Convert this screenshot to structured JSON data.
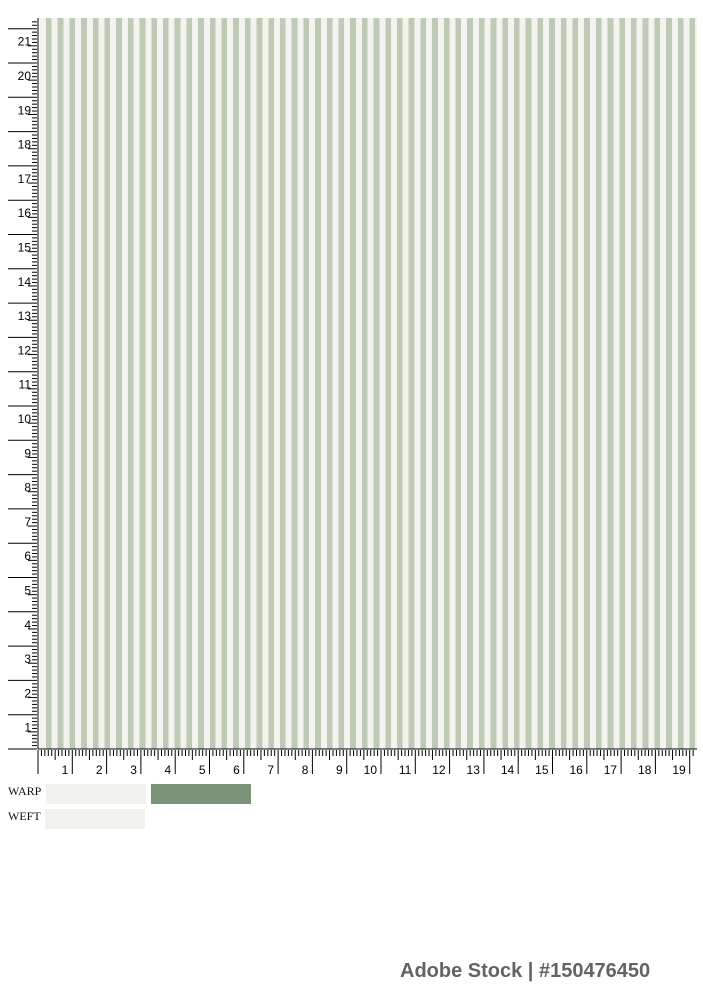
{
  "swatch": {
    "pattern": "vertical-stripes",
    "colors": {
      "ground": "#f3f4ef",
      "stripe": "#bccab6",
      "warp_light": "#f1f2ee",
      "warp_dark": "#7a9277",
      "weft": "#f1f2ee"
    }
  },
  "ruler": {
    "unit": "cm",
    "horizontal_labels": [
      "1",
      "2",
      "3",
      "4",
      "5",
      "6",
      "7",
      "8",
      "9",
      "10",
      "11",
      "12",
      "13",
      "14",
      "15",
      "16",
      "17",
      "18",
      "19"
    ],
    "vertical_labels": [
      "1",
      "2",
      "3",
      "4",
      "5",
      "6",
      "7",
      "8",
      "9",
      "10",
      "11",
      "12",
      "13",
      "14",
      "15",
      "16",
      "17",
      "18",
      "19",
      "20",
      "21"
    ]
  },
  "legend": {
    "warp_label": "WARP",
    "weft_label": "WEFT"
  },
  "watermark": "Adobe Stock | #150476450"
}
